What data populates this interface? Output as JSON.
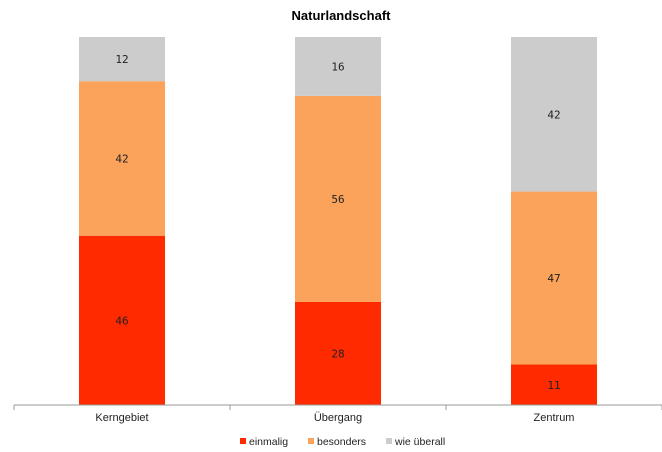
{
  "chart_data": {
    "type": "stacked-bar",
    "title": "Naturlandschaft",
    "xlabel": "",
    "ylabel": "",
    "categories": [
      "Kerngebiet",
      "Übergang",
      "Zentrum"
    ],
    "series": [
      {
        "name": "einmalig",
        "color": "#ff2a00",
        "values": [
          46,
          28,
          11
        ]
      },
      {
        "name": "besonders",
        "color": "#fba35a",
        "values": [
          42,
          56,
          47
        ]
      },
      {
        "name": "wie überall",
        "color": "#cccccc",
        "values": [
          12,
          16,
          42
        ]
      }
    ],
    "ylim": [
      0,
      100
    ],
    "grid": false,
    "legend_position": "bottom"
  }
}
